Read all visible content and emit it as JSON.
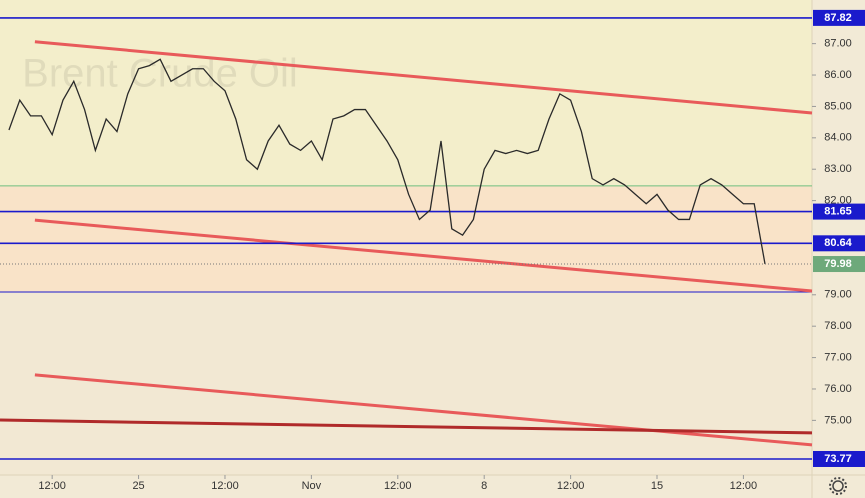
{
  "chart_data": {
    "type": "line",
    "watermark": "Brent Crude Oil",
    "x": [
      0,
      1,
      2,
      3,
      4,
      5,
      6,
      7,
      8,
      9,
      10,
      11,
      12,
      13,
      14,
      15,
      16,
      17,
      18,
      19,
      20,
      21,
      22,
      23,
      24,
      25,
      26,
      27,
      28,
      29,
      30,
      31,
      32,
      33,
      34,
      35,
      36,
      37,
      38,
      39,
      40,
      41,
      42,
      43,
      44,
      45,
      46,
      47,
      48,
      49,
      50,
      51,
      52,
      53,
      54,
      55,
      56,
      57,
      58,
      59,
      60,
      61,
      62,
      63,
      64,
      65,
      66,
      67,
      68,
      69,
      70
    ],
    "series": [
      {
        "color": "#2a2a2a",
        "values": [
          84.25,
          85.2,
          84.7,
          84.7,
          84.1,
          85.2,
          85.8,
          84.9,
          83.6,
          84.6,
          84.2,
          85.4,
          86.2,
          86.3,
          86.5,
          85.8,
          86.0,
          86.2,
          86.2,
          85.8,
          85.5,
          84.6,
          83.3,
          83.0,
          83.9,
          84.4,
          83.8,
          83.6,
          83.9,
          83.3,
          84.6,
          84.7,
          84.9,
          84.9,
          84.4,
          83.9,
          83.3,
          82.2,
          81.4,
          81.7,
          83.9,
          81.1,
          80.9,
          81.4,
          83.0,
          83.6,
          83.5,
          83.6,
          83.5,
          83.6,
          84.6,
          85.4,
          85.2,
          84.2,
          82.7,
          82.5,
          82.7,
          82.5,
          82.2,
          81.9,
          82.2,
          81.7,
          81.4,
          81.4,
          82.5,
          82.7,
          82.5,
          82.2,
          81.9,
          81.9,
          79.98
        ]
      }
    ],
    "xlim": [
      -0.83,
      74.35
    ],
    "ylim": [
      73.26,
      88.39
    ],
    "xticks": [
      {
        "value": 4,
        "label": "12:00"
      },
      {
        "value": 12,
        "label": "25"
      },
      {
        "value": 20,
        "label": "12:00"
      },
      {
        "value": 28,
        "label": "Nov"
      },
      {
        "value": 36,
        "label": "12:00"
      },
      {
        "value": 44,
        "label": "8"
      },
      {
        "value": 52,
        "label": "12:00"
      },
      {
        "value": 60,
        "label": "15"
      },
      {
        "value": 68,
        "label": "12:00"
      }
    ],
    "yticks": [
      {
        "value": 75,
        "label": "75.00"
      },
      {
        "value": 76,
        "label": "76.00"
      },
      {
        "value": 77,
        "label": "77.00"
      },
      {
        "value": 78,
        "label": "78.00"
      },
      {
        "value": 79,
        "label": "79.00"
      },
      {
        "value": 82,
        "label": "82.00"
      },
      {
        "value": 83,
        "label": "83.00"
      },
      {
        "value": 84,
        "label": "84.00"
      },
      {
        "value": 85,
        "label": "85.00"
      },
      {
        "value": 86,
        "label": "86.00"
      },
      {
        "value": 87,
        "label": "87.00"
      }
    ],
    "levels": [
      87.82,
      81.65,
      80.64,
      73.77
    ],
    "level_color": "#1a1acc",
    "guide": 79.09,
    "green_line": 82.47,
    "last_color": "#6ea97b",
    "trendlines": [
      {
        "color": "#e85a5a",
        "x": [
          2.4,
          74.35
        ],
        "y": [
          87.06,
          84.79
        ]
      },
      {
        "color": "#e85a5a",
        "x": [
          2.4,
          74.35
        ],
        "y": [
          81.38,
          79.12
        ]
      },
      {
        "color": "#e85a5a",
        "x": [
          2.4,
          74.35
        ],
        "y": [
          76.45,
          74.22
        ]
      },
      {
        "color": "#b02a2a",
        "x": [
          -0.83,
          74.35
        ],
        "y": [
          75.01,
          74.6
        ]
      }
    ]
  }
}
